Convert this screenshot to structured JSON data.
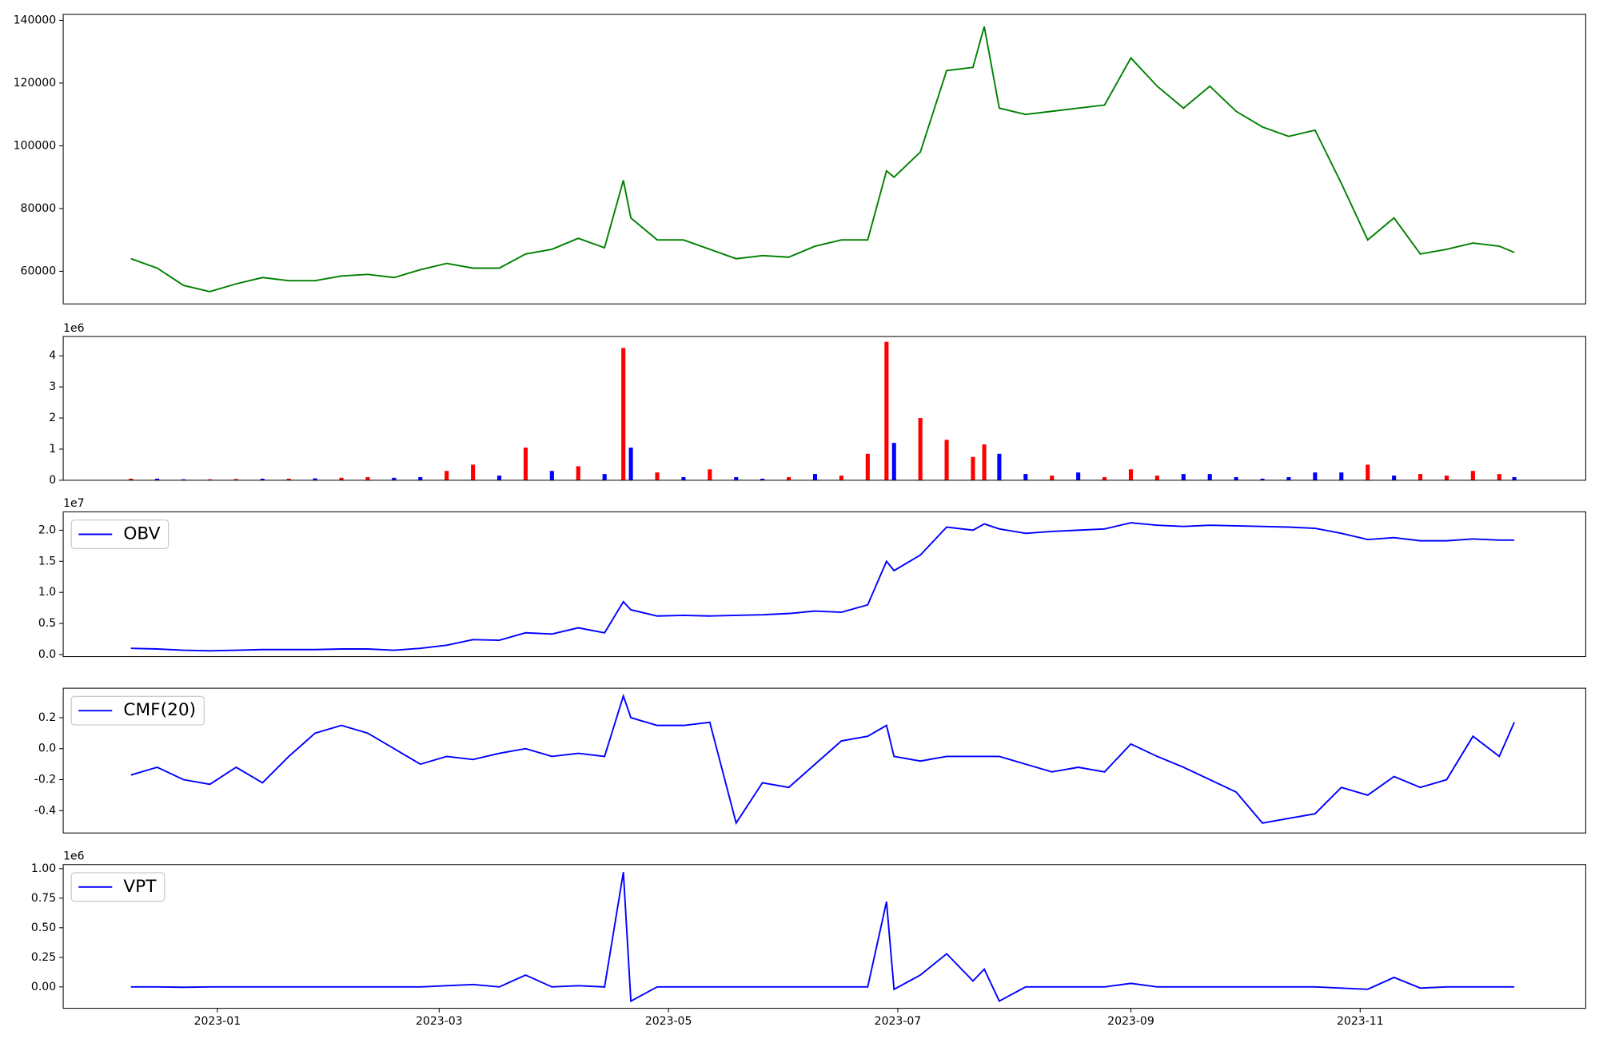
{
  "chart_data": [
    {
      "type": "line",
      "color": "#008000",
      "x": [
        "2022-12-09",
        "2022-12-16",
        "2022-12-23",
        "2022-12-30",
        "2023-01-06",
        "2023-01-13",
        "2023-01-20",
        "2023-01-27",
        "2023-02-03",
        "2023-02-10",
        "2023-02-17",
        "2023-02-24",
        "2023-03-03",
        "2023-03-10",
        "2023-03-17",
        "2023-03-24",
        "2023-03-31",
        "2023-04-07",
        "2023-04-14",
        "2023-04-19",
        "2023-04-21",
        "2023-04-28",
        "2023-05-05",
        "2023-05-12",
        "2023-05-19",
        "2023-05-26",
        "2023-06-02",
        "2023-06-09",
        "2023-06-16",
        "2023-06-23",
        "2023-06-28",
        "2023-06-30",
        "2023-07-07",
        "2023-07-14",
        "2023-07-21",
        "2023-07-24",
        "2023-07-28",
        "2023-08-04",
        "2023-08-11",
        "2023-08-18",
        "2023-08-25",
        "2023-09-01",
        "2023-09-08",
        "2023-09-15",
        "2023-09-22",
        "2023-09-29",
        "2023-10-06",
        "2023-10-13",
        "2023-10-20",
        "2023-10-27",
        "2023-11-03",
        "2023-11-10",
        "2023-11-17",
        "2023-11-24",
        "2023-12-01",
        "2023-12-08",
        "2023-12-12"
      ],
      "values": [
        64000,
        61000,
        55500,
        53500,
        56000,
        58000,
        57000,
        57000,
        58500,
        59000,
        58000,
        60500,
        62500,
        61000,
        61000,
        65500,
        67000,
        70500,
        67500,
        89000,
        77000,
        70000,
        70000,
        67000,
        64000,
        65000,
        64500,
        68000,
        70000,
        70000,
        92000,
        90000,
        98000,
        124000,
        125000,
        138000,
        112000,
        110000,
        111000,
        112000,
        113000,
        128000,
        119000,
        112000,
        119000,
        111000,
        106000,
        103000,
        105000,
        88000,
        70000,
        77000,
        65500,
        67000,
        69000,
        68000,
        66000
      ],
      "xlim": [
        "2022-11-21",
        "2023-12-31"
      ],
      "ylim": [
        49600,
        141900
      ],
      "yticks": [
        60000,
        80000,
        100000,
        120000,
        140000
      ]
    },
    {
      "type": "bar",
      "offset_text": "1e6",
      "x": [
        "2022-12-09",
        "2022-12-16",
        "2022-12-23",
        "2022-12-30",
        "2023-01-06",
        "2023-01-13",
        "2023-01-20",
        "2023-01-27",
        "2023-02-03",
        "2023-02-10",
        "2023-02-17",
        "2023-02-24",
        "2023-03-03",
        "2023-03-10",
        "2023-03-17",
        "2023-03-24",
        "2023-03-31",
        "2023-04-07",
        "2023-04-14",
        "2023-04-19",
        "2023-04-21",
        "2023-04-28",
        "2023-05-05",
        "2023-05-12",
        "2023-05-19",
        "2023-05-26",
        "2023-06-02",
        "2023-06-09",
        "2023-06-16",
        "2023-06-23",
        "2023-06-28",
        "2023-06-30",
        "2023-07-07",
        "2023-07-14",
        "2023-07-21",
        "2023-07-24",
        "2023-07-28",
        "2023-08-04",
        "2023-08-11",
        "2023-08-18",
        "2023-08-25",
        "2023-09-01",
        "2023-09-08",
        "2023-09-15",
        "2023-09-22",
        "2023-09-29",
        "2023-10-06",
        "2023-10-13",
        "2023-10-20",
        "2023-10-27",
        "2023-11-03",
        "2023-11-10",
        "2023-11-17",
        "2023-11-24",
        "2023-12-01",
        "2023-12-08",
        "2023-12-12"
      ],
      "values": [
        50000,
        50000,
        30000,
        30000,
        40000,
        50000,
        50000,
        60000,
        80000,
        100000,
        80000,
        100000,
        300000,
        500000,
        150000,
        1050000,
        300000,
        450000,
        200000,
        4250000,
        1050000,
        250000,
        100000,
        350000,
        100000,
        50000,
        100000,
        200000,
        150000,
        850000,
        4450000,
        1200000,
        2000000,
        1300000,
        750000,
        1150000,
        850000,
        200000,
        150000,
        250000,
        100000,
        350000,
        150000,
        200000,
        200000,
        100000,
        50000,
        100000,
        250000,
        250000,
        500000,
        150000,
        200000,
        150000,
        300000,
        200000,
        100000
      ],
      "bar_colors": [
        "#ff0000",
        "#0000ff",
        "#0000ff",
        "#ff0000",
        "#ff0000",
        "#0000ff",
        "#ff0000",
        "#0000ff",
        "#ff0000",
        "#ff0000",
        "#0000ff",
        "#0000ff",
        "#ff0000",
        "#ff0000",
        "#0000ff",
        "#ff0000",
        "#0000ff",
        "#ff0000",
        "#0000ff",
        "#ff0000",
        "#0000ff",
        "#ff0000",
        "#0000ff",
        "#ff0000",
        "#0000ff",
        "#0000ff",
        "#ff0000",
        "#0000ff",
        "#ff0000",
        "#ff0000",
        "#ff0000",
        "#0000ff",
        "#ff0000",
        "#ff0000",
        "#ff0000",
        "#ff0000",
        "#0000ff",
        "#0000ff",
        "#ff0000",
        "#0000ff",
        "#ff0000",
        "#ff0000",
        "#ff0000",
        "#0000ff",
        "#0000ff",
        "#0000ff",
        "#0000ff",
        "#0000ff",
        "#0000ff",
        "#0000ff",
        "#ff0000",
        "#0000ff",
        "#ff0000",
        "#ff0000",
        "#ff0000",
        "#ff0000",
        "#0000ff"
      ],
      "xlim": [
        "2022-11-21",
        "2023-12-31"
      ],
      "ylim": [
        0,
        4620000
      ],
      "yticks": [
        0,
        {
          "value": 1000000,
          "label": "1"
        },
        {
          "value": 2000000,
          "label": "2"
        },
        {
          "value": 3000000,
          "label": "3"
        },
        {
          "value": 4000000,
          "label": "4"
        }
      ]
    },
    {
      "type": "line",
      "offset_text": "1e7",
      "legend": "upper left",
      "x": [
        "2022-12-09",
        "2022-12-16",
        "2022-12-23",
        "2022-12-30",
        "2023-01-06",
        "2023-01-13",
        "2023-01-20",
        "2023-01-27",
        "2023-02-03",
        "2023-02-10",
        "2023-02-17",
        "2023-02-24",
        "2023-03-03",
        "2023-03-10",
        "2023-03-17",
        "2023-03-24",
        "2023-03-31",
        "2023-04-07",
        "2023-04-14",
        "2023-04-19",
        "2023-04-21",
        "2023-04-28",
        "2023-05-05",
        "2023-05-12",
        "2023-05-19",
        "2023-05-26",
        "2023-06-02",
        "2023-06-09",
        "2023-06-16",
        "2023-06-23",
        "2023-06-28",
        "2023-06-30",
        "2023-07-07",
        "2023-07-14",
        "2023-07-21",
        "2023-07-24",
        "2023-07-28",
        "2023-08-04",
        "2023-08-11",
        "2023-08-18",
        "2023-08-25",
        "2023-09-01",
        "2023-09-08",
        "2023-09-15",
        "2023-09-22",
        "2023-09-29",
        "2023-10-06",
        "2023-10-13",
        "2023-10-20",
        "2023-10-27",
        "2023-11-03",
        "2023-11-10",
        "2023-11-17",
        "2023-11-24",
        "2023-12-01",
        "2023-12-08",
        "2023-12-12"
      ],
      "series": [
        {
          "name": "OBV",
          "color": "#0000ff",
          "values": [
            1000000,
            900000,
            700000,
            600000,
            700000,
            800000,
            800000,
            800000,
            900000,
            900000,
            700000,
            1000000,
            1500000,
            2400000,
            2300000,
            3500000,
            3300000,
            4300000,
            3500000,
            8500000,
            7200000,
            6200000,
            6300000,
            6200000,
            6300000,
            6400000,
            6600000,
            7000000,
            6800000,
            8000000,
            15000000,
            13500000,
            16000000,
            20500000,
            20000000,
            21000000,
            20200000,
            19500000,
            19800000,
            20000000,
            20200000,
            21200000,
            20800000,
            20600000,
            20800000,
            20700000,
            20600000,
            20500000,
            20300000,
            19500000,
            18500000,
            18800000,
            18300000,
            18300000,
            18600000,
            18400000,
            18400000
          ]
        }
      ],
      "xlim": [
        "2022-11-21",
        "2023-12-31"
      ],
      "ylim": [
        -330000,
        22950000
      ],
      "yticks": [
        {
          "value": 0,
          "label": "0.0"
        },
        {
          "value": 5000000,
          "label": "0.5"
        },
        {
          "value": 10000000,
          "label": "1.0"
        },
        {
          "value": 15000000,
          "label": "1.5"
        },
        {
          "value": 20000000,
          "label": "2.0"
        }
      ]
    },
    {
      "type": "line",
      "legend": "upper left",
      "x": [
        "2022-12-09",
        "2022-12-16",
        "2022-12-23",
        "2022-12-30",
        "2023-01-06",
        "2023-01-13",
        "2023-01-20",
        "2023-01-27",
        "2023-02-03",
        "2023-02-10",
        "2023-02-17",
        "2023-02-24",
        "2023-03-03",
        "2023-03-10",
        "2023-03-17",
        "2023-03-24",
        "2023-03-31",
        "2023-04-07",
        "2023-04-14",
        "2023-04-19",
        "2023-04-21",
        "2023-04-28",
        "2023-05-05",
        "2023-05-12",
        "2023-05-19",
        "2023-05-26",
        "2023-06-02",
        "2023-06-09",
        "2023-06-16",
        "2023-06-23",
        "2023-06-28",
        "2023-06-30",
        "2023-07-07",
        "2023-07-14",
        "2023-07-21",
        "2023-07-24",
        "2023-07-28",
        "2023-08-04",
        "2023-08-11",
        "2023-08-18",
        "2023-08-25",
        "2023-09-01",
        "2023-09-08",
        "2023-09-15",
        "2023-09-22",
        "2023-09-29",
        "2023-10-06",
        "2023-10-13",
        "2023-10-20",
        "2023-10-27",
        "2023-11-03",
        "2023-11-10",
        "2023-11-17",
        "2023-11-24",
        "2023-12-01",
        "2023-12-08",
        "2023-12-12"
      ],
      "series": [
        {
          "name": "CMF(20)",
          "color": "#0000ff",
          "values": [
            -0.17,
            -0.12,
            -0.2,
            -0.23,
            -0.12,
            -0.22,
            -0.05,
            0.1,
            0.15,
            0.1,
            0.0,
            -0.1,
            -0.05,
            -0.07,
            -0.03,
            0.0,
            -0.05,
            -0.03,
            -0.05,
            0.34,
            0.2,
            0.15,
            0.15,
            0.17,
            -0.48,
            -0.22,
            -0.25,
            -0.1,
            0.05,
            0.08,
            0.15,
            -0.05,
            -0.08,
            -0.05,
            -0.05,
            -0.05,
            -0.05,
            -0.1,
            -0.15,
            -0.12,
            -0.15,
            0.03,
            -0.05,
            -0.12,
            -0.2,
            -0.28,
            -0.48,
            -0.45,
            -0.42,
            -0.25,
            -0.3,
            -0.18,
            -0.25,
            -0.2,
            0.08,
            -0.05,
            0.17
          ]
        }
      ],
      "xlim": [
        "2022-11-21",
        "2023-12-31"
      ],
      "ylim": [
        -0.544,
        0.39
      ],
      "yticks": [
        -0.4,
        -0.2,
        {
          "value": 0,
          "label": "0.0"
        },
        0.2
      ]
    },
    {
      "type": "line",
      "offset_text": "1e6",
      "legend": "upper left",
      "x": [
        "2022-12-09",
        "2022-12-16",
        "2022-12-23",
        "2022-12-30",
        "2023-01-06",
        "2023-01-13",
        "2023-01-20",
        "2023-01-27",
        "2023-02-03",
        "2023-02-10",
        "2023-02-17",
        "2023-02-24",
        "2023-03-03",
        "2023-03-10",
        "2023-03-17",
        "2023-03-24",
        "2023-03-31",
        "2023-04-07",
        "2023-04-14",
        "2023-04-19",
        "2023-04-21",
        "2023-04-28",
        "2023-05-05",
        "2023-05-12",
        "2023-05-19",
        "2023-05-26",
        "2023-06-02",
        "2023-06-09",
        "2023-06-16",
        "2023-06-23",
        "2023-06-28",
        "2023-06-30",
        "2023-07-07",
        "2023-07-14",
        "2023-07-21",
        "2023-07-24",
        "2023-07-28",
        "2023-08-04",
        "2023-08-11",
        "2023-08-18",
        "2023-08-25",
        "2023-09-01",
        "2023-09-08",
        "2023-09-15",
        "2023-09-22",
        "2023-09-29",
        "2023-10-06",
        "2023-10-13",
        "2023-10-20",
        "2023-10-27",
        "2023-11-03",
        "2023-11-10",
        "2023-11-17",
        "2023-11-24",
        "2023-12-01",
        "2023-12-08",
        "2023-12-12"
      ],
      "series": [
        {
          "name": "VPT",
          "color": "#0000ff",
          "values": [
            0,
            0,
            -3000,
            0,
            0,
            0,
            0,
            0,
            0,
            0,
            0,
            0,
            10000,
            20000,
            0,
            100000,
            0,
            10000,
            0,
            970000,
            -120000,
            0,
            0,
            0,
            0,
            0,
            0,
            0,
            0,
            0,
            720000,
            -20000,
            100000,
            280000,
            50000,
            150000,
            -120000,
            0,
            0,
            0,
            0,
            30000,
            0,
            0,
            0,
            0,
            0,
            0,
            0,
            -10000,
            -20000,
            80000,
            -10000,
            0,
            0,
            0,
            0
          ]
        }
      ],
      "xlim": [
        "2022-11-21",
        "2023-12-31"
      ],
      "ylim": [
        -181000,
        1034000
      ],
      "yticks": [
        {
          "value": 0,
          "label": "0.00"
        },
        {
          "value": 250000,
          "label": "0.25"
        },
        {
          "value": 500000,
          "label": "0.50"
        },
        {
          "value": 750000,
          "label": "0.75"
        },
        {
          "value": 1000000,
          "label": "1.00"
        }
      ],
      "xticks": [
        {
          "value": "2023-01-01",
          "label": "2023-01"
        },
        {
          "value": "2023-03-01",
          "label": "2023-03"
        },
        {
          "value": "2023-05-01",
          "label": "2023-05"
        },
        {
          "value": "2023-07-01",
          "label": "2023-07"
        },
        {
          "value": "2023-09-01",
          "label": "2023-09"
        },
        {
          "value": "2023-11-01",
          "label": "2023-11"
        }
      ]
    }
  ]
}
